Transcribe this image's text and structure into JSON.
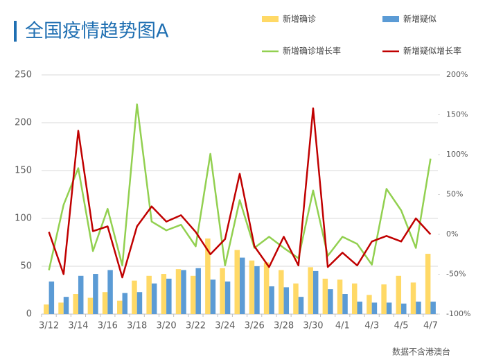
{
  "chart_data": {
    "type": "bar",
    "title": "全国疫情趋势图A",
    "annotation": "数据不含港澳台",
    "categories": [
      "3/12",
      null,
      "3/14",
      null,
      "3/16",
      null,
      "3/18",
      null,
      "3/20",
      null,
      "3/22",
      null,
      "3/24",
      null,
      "3/26",
      null,
      "3/28",
      null,
      "3/30",
      null,
      "4/1",
      null,
      "4/3",
      null,
      "4/5",
      null,
      "4/7"
    ],
    "series": [
      {
        "name": "新增确诊",
        "type": "bar",
        "color": "#ffd966",
        "values": [
          10,
          12,
          21,
          17,
          23,
          14,
          35,
          40,
          42,
          47,
          40,
          79,
          48,
          67,
          56,
          54,
          46,
          32,
          49,
          37,
          36,
          32,
          20,
          31,
          40,
          33,
          63
        ]
      },
      {
        "name": "新增疑似",
        "type": "bar",
        "color": "#5b9bd5",
        "values": [
          34,
          18,
          40,
          42,
          46,
          22,
          23,
          32,
          37,
          46,
          48,
          36,
          34,
          59,
          50,
          29,
          28,
          18,
          45,
          26,
          21,
          13,
          12,
          12,
          11,
          13,
          13
        ]
      },
      {
        "name": "新增确诊增长率",
        "type": "line",
        "axis": "y2",
        "color": "#92d050",
        "values": [
          -45,
          37,
          83,
          -21,
          32,
          -39,
          163,
          16,
          5,
          12,
          -15,
          101,
          -39,
          43,
          -17,
          -3,
          -17,
          -30,
          55,
          -27,
          -3,
          -12,
          -38,
          57,
          30,
          -17,
          95
        ]
      },
      {
        "name": "新增疑似增长率",
        "type": "line",
        "axis": "y2",
        "color": "#c00000",
        "values": [
          3,
          -50,
          130,
          4,
          10,
          -54,
          10,
          35,
          16,
          24,
          3,
          -25,
          -6,
          76,
          -15,
          -41,
          -3,
          -39,
          158,
          -41,
          -23,
          -39,
          -9,
          -2,
          -9,
          20,
          0
        ]
      }
    ],
    "ylim": [
      0,
      250
    ],
    "yticks": [
      0,
      50,
      100,
      150,
      200,
      250
    ],
    "y2lim": [
      -100,
      200
    ],
    "y2ticks": [
      {
        "value": -100,
        "label": "-100%"
      },
      {
        "value": -50,
        "label": "-50%"
      },
      {
        "value": 0,
        "label": "0%"
      },
      {
        "value": 50,
        "label": "50%"
      },
      {
        "value": 100,
        "label": "100%"
      },
      {
        "value": 150,
        "label": "150%"
      },
      {
        "value": 200,
        "label": "200%"
      }
    ],
    "grid": true
  }
}
